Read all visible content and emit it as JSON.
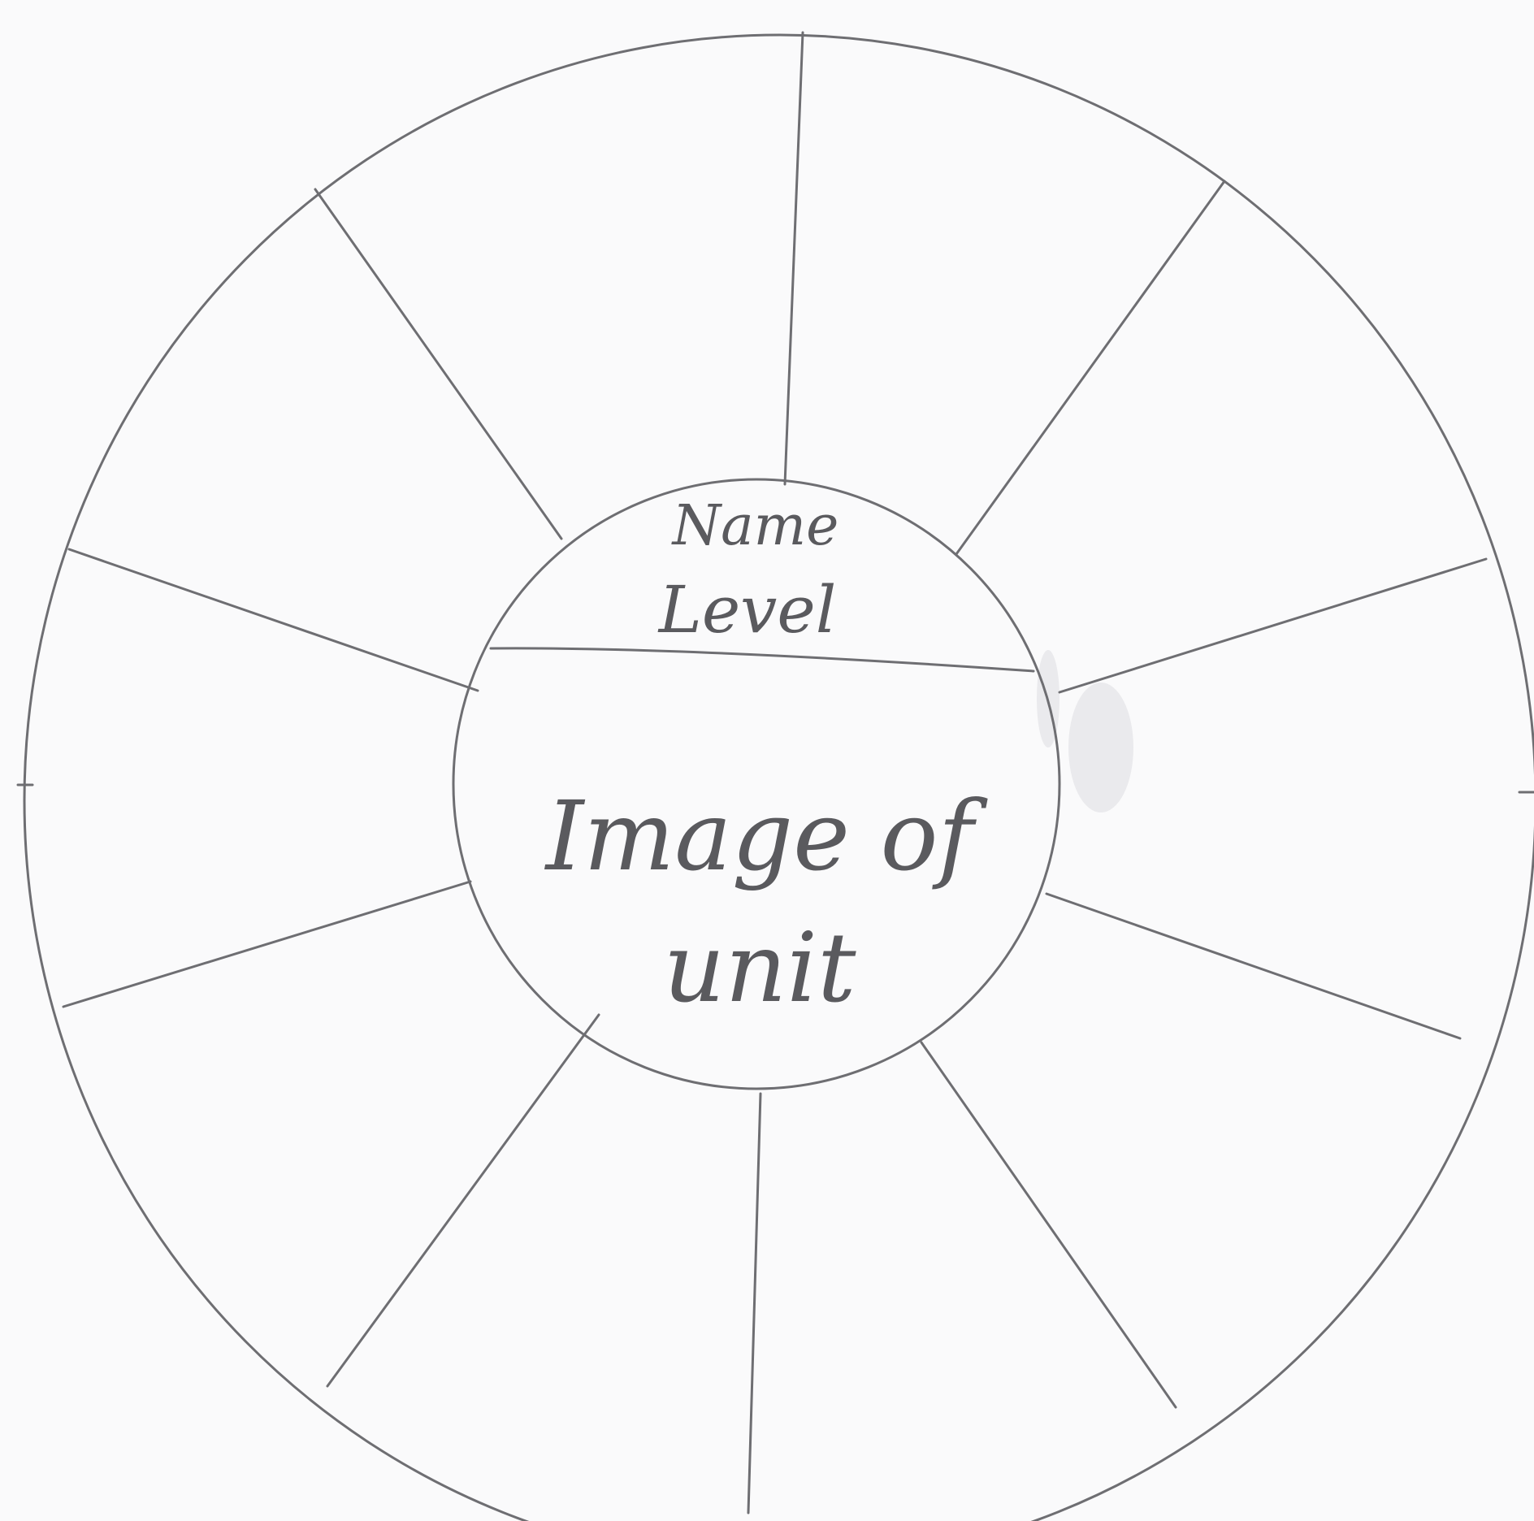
{
  "diagram": {
    "name_label": "Name",
    "level_label": "Level",
    "image_label_line1": "Image of",
    "image_label_line2": "unit",
    "segment_count": 10,
    "stroke_color": "#6e6e72",
    "paper_color": "#fafafb"
  }
}
